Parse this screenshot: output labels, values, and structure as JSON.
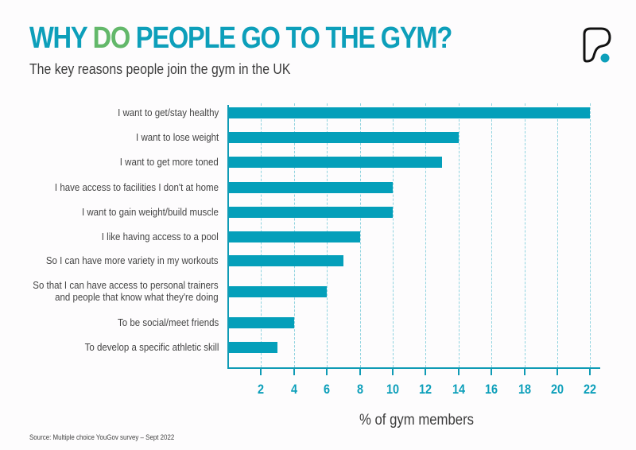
{
  "header": {
    "title_parts": [
      "WHY ",
      "DO",
      " PEOPLE GO TO THE GYM?"
    ],
    "subtitle": "The key reasons people join the gym in the UK"
  },
  "logo": {
    "icon": "p-logo-icon"
  },
  "colors": {
    "bar": "#049fba",
    "title": "#0d9fba",
    "title_highlight": "#63b86a",
    "axis": "#0f9bb5",
    "grid": "#8fd3df"
  },
  "footer": {
    "source": "Source: Multiple choice YouGov survey – Sept 2022"
  },
  "chart_data": {
    "type": "bar",
    "orientation": "horizontal",
    "title": "WHY DO PEOPLE GO TO THE GYM?",
    "subtitle": "The key reasons people join the gym in the UK",
    "xlabel": "% of gym members",
    "ylabel": "",
    "xlim": [
      0,
      22
    ],
    "x_ticks": [
      2,
      4,
      6,
      8,
      10,
      12,
      14,
      16,
      18,
      20,
      22
    ],
    "grid": "vertical dashed",
    "legend": "none",
    "categories": [
      "I want to get/stay healthy",
      "I want to lose weight",
      "I want to get more toned",
      "I have access to facilities I don't at home",
      "I want to gain weight/build muscle",
      "I like having access to a pool",
      "So I can have more variety in my workouts",
      "So that I can have access to personal trainers and people that know what they're doing",
      "To be social/meet friends",
      "To develop a specific athletic skill"
    ],
    "values": [
      22,
      14,
      13,
      10,
      10,
      8,
      7,
      6,
      4,
      3
    ],
    "source": "Source: Multiple choice YouGov survey – Sept 2022"
  },
  "labels": [
    [
      "I want to get/stay healthy"
    ],
    [
      "I want to lose weight"
    ],
    [
      "I want to get more toned"
    ],
    [
      "I have access to facilities I don't at home"
    ],
    [
      "I want to gain weight/build muscle"
    ],
    [
      "I like having access to a pool"
    ],
    [
      "So I can have more variety in my workouts"
    ],
    [
      "So that I can have access to personal trainers",
      "and people that know what they're doing"
    ],
    [
      "To be social/meet friends"
    ],
    [
      "To develop a specific athletic skill"
    ]
  ]
}
